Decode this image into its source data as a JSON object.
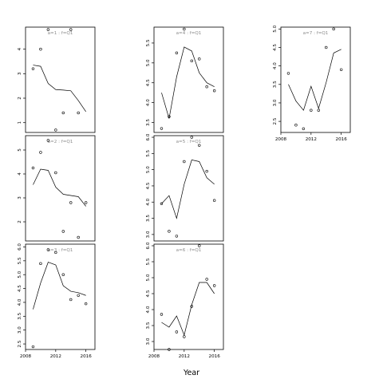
{
  "chart_data": {
    "type": "scatter",
    "xlabel": "Year",
    "ylabel": "",
    "legend": "none",
    "grid": false,
    "xticks": [
      2008,
      2012,
      2016
    ],
    "panels": [
      {
        "title": "a=1 : f=Q1",
        "xlim": [
          2008,
          2017.2
        ],
        "ylim": [
          0.6,
          4.9
        ],
        "yticks": [
          1,
          2,
          3,
          4
        ],
        "show_xaxis": false,
        "points": [
          [
            2009,
            3.2
          ],
          [
            2010,
            4.0
          ],
          [
            2011,
            4.8
          ],
          [
            2012,
            0.7
          ],
          [
            2013,
            1.4
          ],
          [
            2014,
            4.8
          ],
          [
            2015,
            1.4
          ]
        ],
        "line": [
          [
            2009,
            3.35
          ],
          [
            2010,
            3.3
          ],
          [
            2011,
            2.6
          ],
          [
            2012,
            2.35
          ],
          [
            2013,
            2.33
          ],
          [
            2014,
            2.3
          ],
          [
            2015,
            1.9
          ],
          [
            2016,
            1.45
          ]
        ]
      },
      {
        "title": "a=2 : f=Q1",
        "xlim": [
          2008,
          2017.2
        ],
        "ylim": [
          1.2,
          5.6
        ],
        "yticks": [
          2,
          3,
          4,
          5
        ],
        "show_xaxis": false,
        "points": [
          [
            2009,
            4.25
          ],
          [
            2010,
            4.9
          ],
          [
            2011,
            5.4
          ],
          [
            2012,
            4.05
          ],
          [
            2013,
            1.6
          ],
          [
            2014,
            2.8
          ],
          [
            2015,
            1.35
          ],
          [
            2016,
            2.8
          ]
        ],
        "line": [
          [
            2009,
            3.55
          ],
          [
            2010,
            4.2
          ],
          [
            2011,
            4.15
          ],
          [
            2012,
            3.45
          ],
          [
            2013,
            3.15
          ],
          [
            2014,
            3.1
          ],
          [
            2015,
            3.05
          ],
          [
            2016,
            2.65
          ]
        ]
      },
      {
        "title": "a=3 : f=Q1",
        "xlim": [
          2008,
          2017.2
        ],
        "ylim": [
          2.3,
          6.1
        ],
        "yticks": [
          2.5,
          3.0,
          3.5,
          4.0,
          4.5,
          5.0,
          5.5,
          6.0
        ],
        "show_xaxis": true,
        "points": [
          [
            2009,
            2.4
          ],
          [
            2010,
            5.4
          ],
          [
            2011,
            5.9
          ],
          [
            2012,
            5.8
          ],
          [
            2013,
            5.0
          ],
          [
            2014,
            4.1
          ],
          [
            2015,
            4.25
          ],
          [
            2016,
            3.95
          ]
        ],
        "line": [
          [
            2009,
            3.75
          ],
          [
            2010,
            4.7
          ],
          [
            2011,
            5.45
          ],
          [
            2012,
            5.35
          ],
          [
            2013,
            4.6
          ],
          [
            2014,
            4.4
          ],
          [
            2015,
            4.35
          ],
          [
            2016,
            4.25
          ]
        ]
      },
      {
        "title": "a=4 : f=Q1",
        "xlim": [
          2008,
          2017.2
        ],
        "ylim": [
          3.25,
          5.9
        ],
        "yticks": [
          3.5,
          4.0,
          4.5,
          5.0,
          5.5
        ],
        "show_xaxis": false,
        "points": [
          [
            2009,
            3.35
          ],
          [
            2010,
            3.65
          ],
          [
            2011,
            5.25
          ],
          [
            2012,
            5.85
          ],
          [
            2013,
            5.05
          ],
          [
            2014,
            5.1
          ],
          [
            2015,
            4.4
          ],
          [
            2016,
            4.3
          ]
        ],
        "line": [
          [
            2009,
            4.25
          ],
          [
            2010,
            3.6
          ],
          [
            2011,
            4.65
          ],
          [
            2012,
            5.4
          ],
          [
            2013,
            5.3
          ],
          [
            2014,
            4.75
          ],
          [
            2015,
            4.5
          ],
          [
            2016,
            4.4
          ]
        ]
      },
      {
        "title": "a=5 : f=Q1",
        "xlim": [
          2008,
          2017.2
        ],
        "ylim": [
          2.8,
          6.05
        ],
        "yticks": [
          3.0,
          3.5,
          4.0,
          4.5,
          5.0,
          5.5,
          6.0
        ],
        "show_xaxis": false,
        "points": [
          [
            2009,
            3.95
          ],
          [
            2010,
            3.1
          ],
          [
            2011,
            2.95
          ],
          [
            2012,
            5.25
          ],
          [
            2013,
            6.0
          ],
          [
            2014,
            5.75
          ],
          [
            2015,
            4.95
          ],
          [
            2016,
            4.05
          ]
        ],
        "line": [
          [
            2009,
            3.95
          ],
          [
            2010,
            4.2
          ],
          [
            2011,
            3.5
          ],
          [
            2012,
            4.55
          ],
          [
            2013,
            5.3
          ],
          [
            2014,
            5.25
          ],
          [
            2015,
            4.75
          ],
          [
            2016,
            4.55
          ]
        ]
      },
      {
        "title": "a=6 : f=Q1",
        "xlim": [
          2008,
          2017.2
        ],
        "ylim": [
          2.75,
          6.05
        ],
        "yticks": [
          3.0,
          3.5,
          4.0,
          4.5,
          5.0,
          5.5,
          6.0
        ],
        "show_xaxis": true,
        "points": [
          [
            2009,
            3.85
          ],
          [
            2010,
            2.75
          ],
          [
            2011,
            3.3
          ],
          [
            2012,
            3.15
          ],
          [
            2013,
            4.1
          ],
          [
            2014,
            6.0
          ],
          [
            2015,
            4.95
          ],
          [
            2016,
            4.75
          ]
        ],
        "line": [
          [
            2009,
            3.6
          ],
          [
            2010,
            3.45
          ],
          [
            2011,
            3.8
          ],
          [
            2012,
            3.2
          ],
          [
            2013,
            4.15
          ],
          [
            2014,
            4.85
          ],
          [
            2015,
            4.85
          ],
          [
            2016,
            4.5
          ]
        ]
      },
      {
        "title": "a=7 : f=Q1",
        "xlim": [
          2008,
          2017.2
        ],
        "ylim": [
          2.2,
          5.05
        ],
        "yticks": [
          2.5,
          3.0,
          3.5,
          4.0,
          4.5,
          5.0
        ],
        "show_xaxis": true,
        "points": [
          [
            2009,
            3.8
          ],
          [
            2010,
            2.4
          ],
          [
            2011,
            2.3
          ],
          [
            2012,
            2.8
          ],
          [
            2013,
            2.8
          ],
          [
            2014,
            4.5
          ],
          [
            2015,
            5.0
          ],
          [
            2016,
            3.9
          ]
        ],
        "line": [
          [
            2009,
            3.5
          ],
          [
            2010,
            3.05
          ],
          [
            2011,
            2.8
          ],
          [
            2012,
            3.45
          ],
          [
            2013,
            2.85
          ],
          [
            2014,
            3.55
          ],
          [
            2015,
            4.35
          ],
          [
            2016,
            4.45
          ]
        ]
      }
    ]
  }
}
